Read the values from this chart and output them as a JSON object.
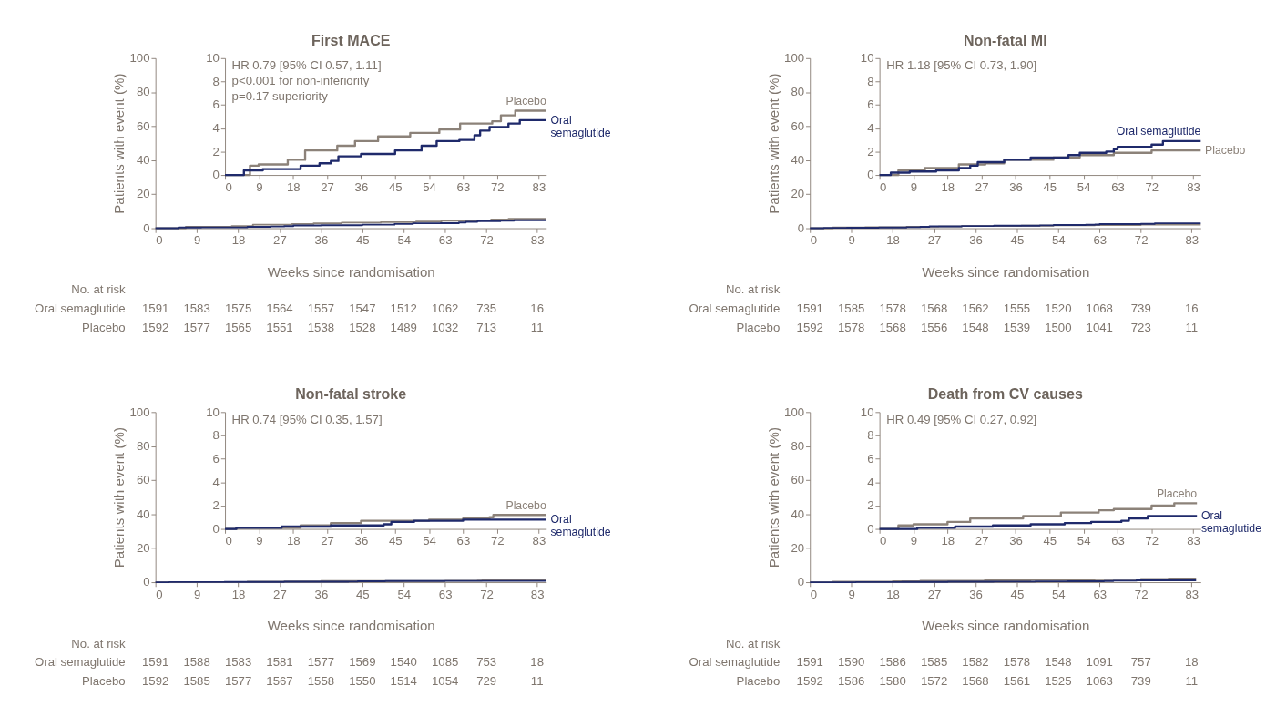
{
  "chart_data": [
    {
      "type": "step",
      "title": "First MACE",
      "xlabel": "Weeks since randomisation",
      "ylabel": "Patients with event (%)",
      "xlim": [
        0,
        85
      ],
      "xticks": [
        0,
        9,
        18,
        27,
        36,
        45,
        54,
        63,
        72,
        83
      ],
      "ylim": [
        0,
        100
      ],
      "yticks": [
        0,
        20,
        40,
        60,
        80,
        100
      ],
      "series": [
        {
          "color": "#8c8279",
          "x": [
            0,
            6.6,
            8.9,
            16.6,
            21.2,
            29.7,
            34.4,
            40.5,
            49,
            56.7,
            62.2,
            70.7,
            73,
            76.8,
            85
          ],
          "values": [
            0,
            0.8,
            0.9,
            1.3,
            2.1,
            2.5,
            2.9,
            3.3,
            3.6,
            3.9,
            4.4,
            4.6,
            5.1,
            5.5,
            5.5
          ]
        },
        {
          "color": "#1f2a6b",
          "x": [
            0,
            5,
            10,
            20,
            25,
            28,
            30,
            36,
            45,
            52,
            56,
            62,
            66,
            67.5,
            70,
            75,
            78,
            85
          ],
          "values": [
            0,
            0.4,
            0.5,
            0.8,
            1.0,
            1.2,
            1.6,
            1.8,
            2.1,
            2.5,
            2.9,
            3.0,
            3.4,
            3.8,
            4.1,
            4.4,
            4.7,
            4.7
          ]
        }
      ],
      "annotations": [
        "No. at risk",
        "Oral semaglutide",
        "1591",
        "1583",
        "1575",
        "1564",
        "1557",
        "1547",
        "1512",
        "1062",
        "735",
        "16",
        "Placebo",
        "1592",
        "1577",
        "1565",
        "1551",
        "1538",
        "1528",
        "1489",
        "1032",
        "713",
        "11"
      ]
    },
    {
      "type": "step",
      "xlim": [
        0,
        85
      ],
      "xticks": [
        0,
        9,
        18,
        27,
        36,
        45,
        54,
        63,
        72,
        83
      ],
      "ylim": [
        0,
        10
      ],
      "yticks": [
        0,
        2,
        4,
        6,
        8,
        10
      ],
      "series": [
        {
          "name": "Placebo",
          "color": "#8c8279",
          "x": [
            0,
            6.6,
            8.9,
            16.6,
            21.2,
            29.7,
            34.4,
            40.5,
            49,
            56.7,
            62.2,
            70.7,
            73,
            76.8,
            85
          ],
          "values": [
            0,
            0.8,
            0.9,
            1.3,
            2.1,
            2.5,
            2.9,
            3.3,
            3.6,
            3.9,
            4.4,
            4.6,
            5.1,
            5.5,
            5.5
          ]
        },
        {
          "name": "Oral semaglutide",
          "color": "#1f2a6b",
          "x": [
            0,
            5,
            10,
            20,
            25,
            28,
            30,
            36,
            45,
            52,
            56,
            62,
            66,
            67.5,
            70,
            75,
            78,
            85
          ],
          "values": [
            0,
            0.4,
            0.5,
            0.8,
            1.0,
            1.2,
            1.6,
            1.8,
            2.1,
            2.5,
            2.9,
            3.0,
            3.4,
            3.8,
            4.1,
            4.4,
            4.7,
            4.7
          ]
        }
      ],
      "annotations": [
        "HR 0.79 [95% CI 0.57, 1.11]",
        "p<0.001 for non-inferiority",
        "p=0.17 superiority"
      ]
    },
    {
      "type": "step",
      "title": "Non-fatal MI",
      "xlabel": "Weeks since randomisation",
      "ylabel": "Patients with event (%)",
      "xlim": [
        0,
        85
      ],
      "xticks": [
        0,
        9,
        18,
        27,
        36,
        45,
        54,
        63,
        72,
        83
      ],
      "ylim": [
        0,
        100
      ],
      "yticks": [
        0,
        20,
        40,
        60,
        80,
        100
      ],
      "series": [
        {
          "color": "#8c8279",
          "x": [
            0,
            5,
            12,
            21,
            28,
            33,
            46,
            53,
            62,
            72,
            85
          ],
          "values": [
            0,
            0.4,
            0.6,
            0.9,
            1.0,
            1.3,
            1.5,
            1.7,
            1.9,
            2.1,
            2.1
          ]
        },
        {
          "color": "#1f2a6b",
          "x": [
            0,
            3,
            8,
            15,
            21,
            24,
            26,
            33,
            40,
            50,
            53,
            60,
            62,
            63,
            72,
            75,
            85
          ],
          "values": [
            0,
            0.2,
            0.3,
            0.4,
            0.6,
            0.8,
            1.1,
            1.3,
            1.5,
            1.7,
            1.9,
            2.0,
            2.2,
            2.4,
            2.6,
            2.9,
            2.9
          ]
        }
      ],
      "annotations": [
        "No. at risk",
        "Oral semaglutide",
        "1591",
        "1585",
        "1578",
        "1568",
        "1562",
        "1555",
        "1520",
        "1068",
        "739",
        "16",
        "Placebo",
        "1592",
        "1578",
        "1568",
        "1556",
        "1548",
        "1539",
        "1500",
        "1041",
        "723",
        "11"
      ]
    },
    {
      "type": "step",
      "xlim": [
        0,
        85
      ],
      "xticks": [
        0,
        9,
        18,
        27,
        36,
        45,
        54,
        63,
        72,
        83
      ],
      "ylim": [
        0,
        10
      ],
      "yticks": [
        0,
        2,
        4,
        6,
        8,
        10
      ],
      "series": [
        {
          "name": "Placebo",
          "color": "#8c8279",
          "x": [
            0,
            5,
            12,
            21,
            28,
            33,
            46,
            53,
            62,
            72,
            85
          ],
          "values": [
            0,
            0.4,
            0.6,
            0.9,
            1.0,
            1.3,
            1.5,
            1.7,
            1.9,
            2.1,
            2.1
          ]
        },
        {
          "name": "Oral semaglutide",
          "color": "#1f2a6b",
          "x": [
            0,
            3,
            8,
            15,
            21,
            24,
            26,
            33,
            40,
            50,
            53,
            60,
            62,
            63,
            72,
            75,
            85
          ],
          "values": [
            0,
            0.2,
            0.3,
            0.4,
            0.6,
            0.8,
            1.1,
            1.3,
            1.5,
            1.7,
            1.9,
            2.0,
            2.2,
            2.4,
            2.6,
            2.9,
            2.9
          ]
        }
      ],
      "annotations": [
        "HR 1.18 [95% CI 0.73, 1.90]"
      ]
    },
    {
      "type": "step",
      "title": "Non-fatal stroke",
      "xlabel": "Weeks since randomisation",
      "ylabel": "Patients with event (%)",
      "xlim": [
        0,
        85
      ],
      "xticks": [
        0,
        9,
        18,
        27,
        36,
        45,
        54,
        63,
        72,
        83
      ],
      "ylim": [
        0,
        100
      ],
      "yticks": [
        0,
        20,
        40,
        60,
        80,
        100
      ],
      "series": [
        {
          "color": "#8c8279",
          "x": [
            0,
            3,
            20,
            28,
            36,
            54,
            63,
            70,
            71,
            85
          ],
          "values": [
            0,
            0.1,
            0.3,
            0.5,
            0.7,
            0.8,
            0.9,
            1.0,
            1.2,
            1.2
          ]
        },
        {
          "color": "#1f2a6b",
          "x": [
            0,
            3,
            15,
            28,
            42,
            44,
            50,
            63,
            85
          ],
          "values": [
            0,
            0.1,
            0.2,
            0.3,
            0.4,
            0.6,
            0.7,
            0.8,
            0.8
          ]
        }
      ],
      "annotations": [
        "No. at risk",
        "Oral semaglutide",
        "1591",
        "1588",
        "1583",
        "1581",
        "1577",
        "1569",
        "1540",
        "1085",
        "753",
        "18",
        "Placebo",
        "1592",
        "1585",
        "1577",
        "1567",
        "1558",
        "1550",
        "1514",
        "1054",
        "729",
        "11"
      ]
    },
    {
      "type": "step",
      "xlim": [
        0,
        85
      ],
      "xticks": [
        0,
        9,
        18,
        27,
        36,
        45,
        54,
        63,
        72,
        83
      ],
      "ylim": [
        0,
        10
      ],
      "yticks": [
        0,
        2,
        4,
        6,
        8,
        10
      ],
      "series": [
        {
          "name": "Placebo",
          "color": "#8c8279",
          "x": [
            0,
            3,
            20,
            28,
            36,
            54,
            63,
            70,
            71,
            85
          ],
          "values": [
            0,
            0.1,
            0.3,
            0.5,
            0.7,
            0.8,
            0.9,
            1.0,
            1.2,
            1.2
          ]
        },
        {
          "name": "Oral semaglutide",
          "color": "#1f2a6b",
          "x": [
            0,
            3,
            15,
            28,
            42,
            44,
            50,
            63,
            85
          ],
          "values": [
            0,
            0.1,
            0.2,
            0.3,
            0.4,
            0.6,
            0.7,
            0.8,
            0.8
          ]
        }
      ],
      "annotations": [
        "HR 0.74 [95% CI 0.35, 1.57]"
      ]
    },
    {
      "type": "step",
      "title": "Death from CV causes",
      "xlabel": "Weeks since randomisation",
      "ylabel": "Patients with event (%)",
      "xlim": [
        0,
        85
      ],
      "xticks": [
        0,
        9,
        18,
        27,
        36,
        45,
        54,
        63,
        72,
        83
      ],
      "ylim": [
        0,
        100
      ],
      "yticks": [
        0,
        20,
        40,
        60,
        80,
        100
      ],
      "series": [
        {
          "color": "#8c8279",
          "x": [
            0,
            5,
            9,
            18,
            24,
            38,
            48,
            58,
            62,
            72,
            78,
            84
          ],
          "values": [
            0,
            0.3,
            0.4,
            0.6,
            0.9,
            1.1,
            1.4,
            1.6,
            1.7,
            2.0,
            2.2,
            2.2
          ]
        },
        {
          "color": "#1f2a6b",
          "x": [
            0,
            10,
            20,
            30,
            40,
            49,
            56,
            64,
            66,
            71,
            84
          ],
          "values": [
            0,
            0.1,
            0.2,
            0.3,
            0.4,
            0.5,
            0.6,
            0.7,
            0.9,
            1.1,
            1.1
          ]
        }
      ],
      "annotations": [
        "No. at risk",
        "Oral semaglutide",
        "1591",
        "1590",
        "1586",
        "1585",
        "1582",
        "1578",
        "1548",
        "1091",
        "757",
        "18",
        "Placebo",
        "1592",
        "1586",
        "1580",
        "1572",
        "1568",
        "1561",
        "1525",
        "1063",
        "739",
        "11"
      ]
    },
    {
      "type": "step",
      "xlim": [
        0,
        85
      ],
      "xticks": [
        0,
        9,
        18,
        27,
        36,
        45,
        54,
        63,
        72,
        83
      ],
      "ylim": [
        0,
        10
      ],
      "yticks": [
        0,
        2,
        4,
        6,
        8,
        10
      ],
      "series": [
        {
          "name": "Placebo",
          "color": "#8c8279",
          "x": [
            0,
            5,
            9,
            18,
            24,
            38,
            48,
            58,
            62,
            72,
            78,
            84
          ],
          "values": [
            0,
            0.3,
            0.4,
            0.6,
            0.9,
            1.1,
            1.4,
            1.6,
            1.7,
            2.0,
            2.2,
            2.2
          ]
        },
        {
          "name": "Oral semaglutide",
          "color": "#1f2a6b",
          "x": [
            0,
            10,
            20,
            30,
            40,
            49,
            56,
            64,
            66,
            71,
            84
          ],
          "values": [
            0,
            0.1,
            0.2,
            0.3,
            0.4,
            0.5,
            0.6,
            0.7,
            0.9,
            1.1,
            1.1
          ]
        }
      ],
      "annotations": [
        "HR 0.49 [95% CI 0.27, 0.92]"
      ]
    }
  ]
}
